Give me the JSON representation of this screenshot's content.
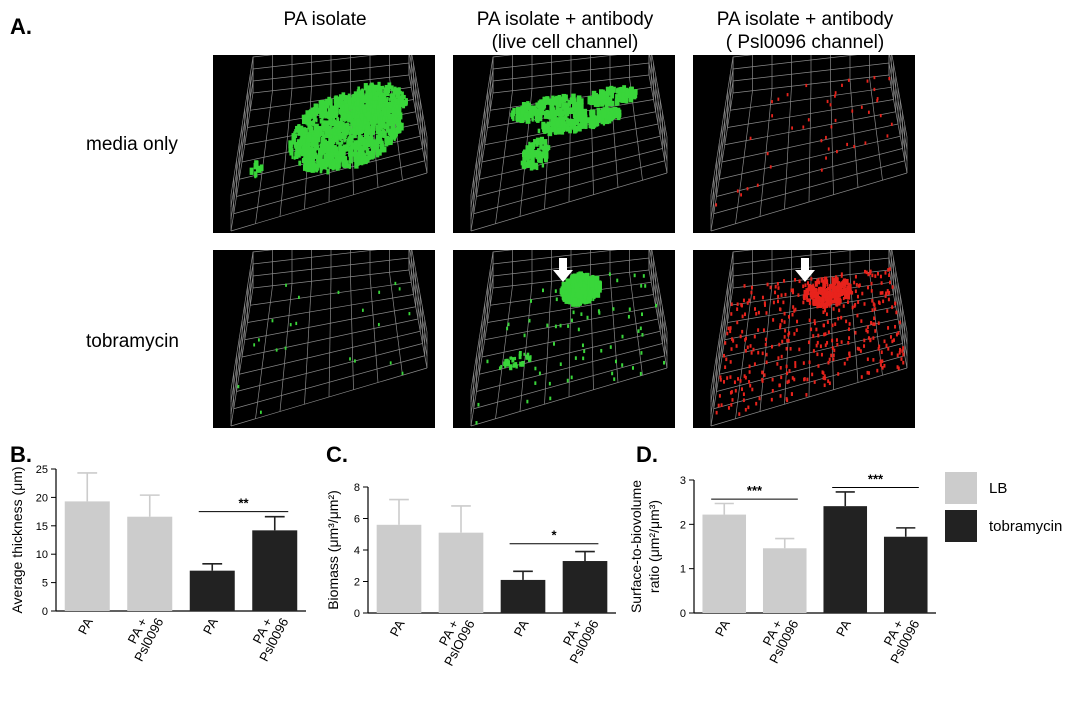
{
  "panelA": {
    "letter": "A.",
    "col_titles": [
      [
        "PA isolate"
      ],
      [
        "PA isolate + antibody",
        "(live cell channel)"
      ],
      [
        "PA isolate + antibody",
        "( Psl0096 channel)"
      ]
    ],
    "row_labels": [
      "media only",
      "tobramycin"
    ],
    "tiles": [
      {
        "row": 0,
        "col": 0,
        "channel": "green",
        "density": "dense-large",
        "arrow": false
      },
      {
        "row": 0,
        "col": 1,
        "channel": "green",
        "density": "medium-patches",
        "arrow": false
      },
      {
        "row": 0,
        "col": 2,
        "channel": "red",
        "density": "sparse",
        "arrow": false
      },
      {
        "row": 1,
        "col": 0,
        "channel": "green",
        "density": "very-sparse",
        "arrow": false
      },
      {
        "row": 1,
        "col": 1,
        "channel": "green",
        "density": "cluster-with-scatter",
        "arrow": true
      },
      {
        "row": 1,
        "col": 2,
        "channel": "red",
        "density": "dense-scatter",
        "arrow": true
      }
    ],
    "colors": {
      "green": "#39d63a",
      "red": "#e8231c",
      "grid": "#8a8a8a",
      "arrow": "#ffffff"
    }
  },
  "legend": {
    "items": [
      {
        "label": "LB",
        "color": "#cccccc"
      },
      {
        "label": "tobramycin",
        "color": "#222222"
      }
    ]
  },
  "chart_data": [
    {
      "letter": "B.",
      "type": "bar",
      "ylabel": "Average thickness (μm)",
      "ylim": [
        0,
        25
      ],
      "yticks": [
        0,
        5,
        10,
        15,
        20,
        25
      ],
      "categories": [
        "PA",
        "PA + Psl0096",
        "PA",
        "PA + Psl0096"
      ],
      "cat_lines": [
        [
          "PA"
        ],
        [
          "PA +",
          "Psl0096"
        ],
        [
          "PA"
        ],
        [
          "PA +",
          "Psl0096"
        ]
      ],
      "values": [
        19.3,
        16.6,
        7.1,
        14.2
      ],
      "errors": [
        5.0,
        3.8,
        1.2,
        2.4
      ],
      "groups": [
        "LB",
        "LB",
        "tobramycin",
        "tobramycin"
      ],
      "significance": [
        {
          "from": 2,
          "to": 3,
          "y": 17.5,
          "label": "**"
        }
      ]
    },
    {
      "letter": "C.",
      "type": "bar",
      "ylabel": "Biomass (μm³/μm²)",
      "ylim": [
        0,
        8
      ],
      "yticks": [
        0,
        2,
        4,
        6,
        8
      ],
      "categories": [
        "PA",
        "PA + Psl0096",
        "PA",
        "PA + Psl0096"
      ],
      "cat_lines": [
        [
          "PA"
        ],
        [
          "PA +",
          "PslO096"
        ],
        [
          "PA"
        ],
        [
          "PA +",
          "Psl0096"
        ]
      ],
      "values": [
        5.6,
        5.1,
        2.1,
        3.3
      ],
      "errors": [
        1.6,
        1.7,
        0.55,
        0.6
      ],
      "groups": [
        "LB",
        "LB",
        "tobramycin",
        "tobramycin"
      ],
      "significance": [
        {
          "from": 2,
          "to": 3,
          "y": 4.4,
          "label": "*"
        }
      ]
    },
    {
      "letter": "D.",
      "type": "bar",
      "ylabel": "Surface-to-biovolume ratio (μm²/μm³)",
      "ylabel_lines": [
        "Surface-to-biovolume",
        "ratio (μm²/μm³)"
      ],
      "ylim": [
        0,
        3
      ],
      "yticks": [
        0,
        1,
        2,
        3
      ],
      "categories": [
        "PA",
        "PA + Psl0096",
        "PA",
        "PA + Psl0096"
      ],
      "cat_lines": [
        [
          "PA"
        ],
        [
          "PA +",
          "Psl0096"
        ],
        [
          "PA"
        ],
        [
          "PA +",
          "Psl0096"
        ]
      ],
      "values": [
        2.22,
        1.46,
        2.41,
        1.72
      ],
      "errors": [
        0.25,
        0.22,
        0.32,
        0.2
      ],
      "groups": [
        "LB",
        "LB",
        "tobramycin",
        "tobramycin"
      ],
      "significance": [
        {
          "from": 0,
          "to": 1,
          "y": 2.57,
          "label": "***"
        },
        {
          "from": 2,
          "to": 3,
          "y": 2.83,
          "label": "***"
        }
      ]
    }
  ]
}
